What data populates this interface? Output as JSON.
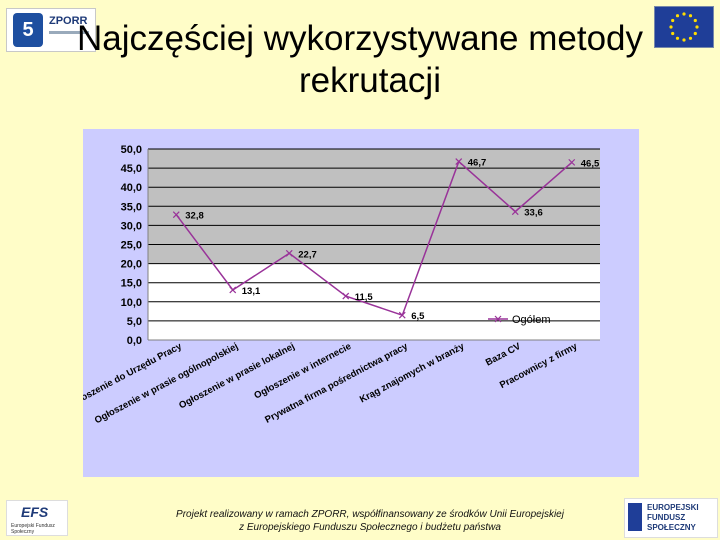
{
  "slide": {
    "title_line1": "Najczęściej wykorzystywane metody",
    "title_line2": "rekrutacji",
    "footer_line1": "Projekt realizowany w ramach ZPORR, współfinansowany ze środków Unii Europejskiej",
    "footer_line2": "z Europejskiego Funduszu Społecznego i budżetu państwa"
  },
  "logos": {
    "top_left_text": "ZPORR",
    "top_left_badge": "5",
    "bottom_left_text": "EFS",
    "bottom_left_caption": "Europejski Fundusz Społeczny",
    "bottom_right_text_1": "EUROPEJSKI",
    "bottom_right_text_2": "FUNDUSZ",
    "bottom_right_text_3": "SPOŁECZNY"
  },
  "colors": {
    "slide_background": "#fffdc8",
    "chart_background": "#ccccff",
    "plot_background": "#c0c0c0",
    "series_line": "#993399"
  },
  "chart_data": {
    "type": "line",
    "title": "",
    "xlabel": "",
    "ylabel": "",
    "ylim": [
      0,
      50
    ],
    "yticks": [
      "0,0",
      "5,0",
      "10,0",
      "15,0",
      "20,0",
      "25,0",
      "30,0",
      "35,0",
      "40,0",
      "45,0",
      "50,0"
    ],
    "grid": true,
    "legend_position": "bottom-right",
    "categories": [
      "Ogłoszenie do Urzędu Pracy",
      "Ogłoszenie w prasie ogólnopolskiej",
      "Ogłoszenie w prasie lokalnej",
      "Ogłoszenie w internecie",
      "Prywatna firma pośrednictwa pracy",
      "Krąg znajomych w branży",
      "Baza CV",
      "Pracownicy z firmy"
    ],
    "series": [
      {
        "name": "Ogółem",
        "values": [
          32.8,
          13.1,
          22.7,
          11.5,
          6.5,
          46.7,
          33.6,
          46.5
        ],
        "labels": [
          "32,8",
          "13,1",
          "22,7",
          "11,5",
          "6,5",
          "46,7",
          "33,6",
          "46,5"
        ]
      }
    ]
  }
}
